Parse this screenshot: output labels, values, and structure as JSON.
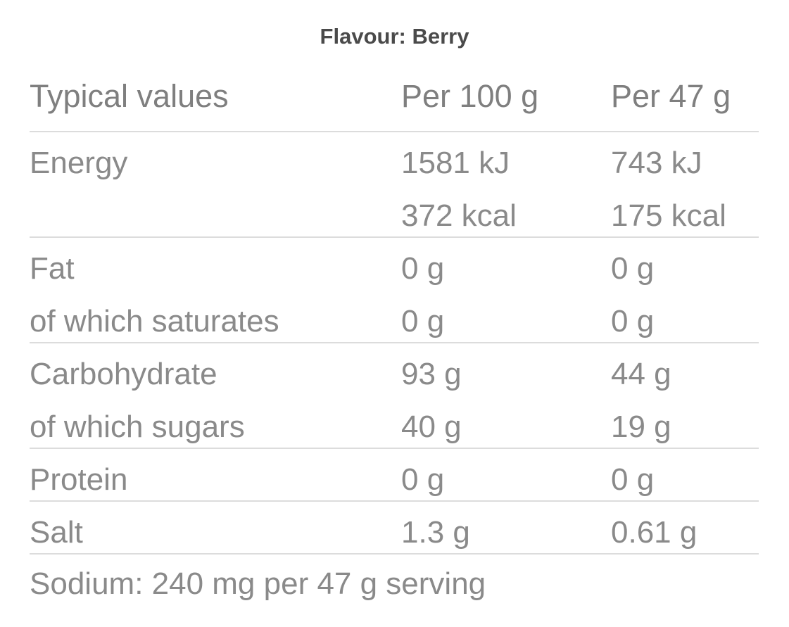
{
  "title": "Flavour: Berry",
  "table": {
    "header": [
      "Typical values",
      "Per 100 g",
      "Per 47 g"
    ],
    "rows": [
      [
        [
          "Energy"
        ],
        [
          "1581 kJ",
          "372 kcal"
        ],
        [
          "743 kJ",
          "175 kcal"
        ]
      ],
      [
        [
          "Fat",
          "of which saturates"
        ],
        [
          "0 g",
          "0 g"
        ],
        [
          "0 g",
          "0 g"
        ]
      ],
      [
        [
          "Carbohydrate",
          "of which sugars"
        ],
        [
          "93 g",
          "40 g"
        ],
        [
          "44 g",
          "19 g"
        ]
      ],
      [
        [
          "Protein"
        ],
        [
          "0 g"
        ],
        [
          "0 g"
        ]
      ],
      [
        [
          "Salt"
        ],
        [
          "1.3 g"
        ],
        [
          "0.61 g"
        ]
      ]
    ],
    "footer": "Sodium: 240 mg per 47 g serving"
  }
}
